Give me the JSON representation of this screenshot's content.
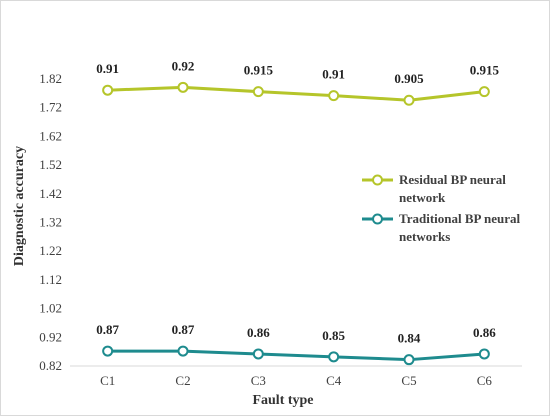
{
  "chart_data": {
    "type": "line",
    "title": "",
    "xlabel": "Fault type",
    "ylabel": "Diagnostic accuracy",
    "categories": [
      "C1",
      "C2",
      "C3",
      "C4",
      "C5",
      "C6"
    ],
    "yticks": [
      "0.82",
      "0.92",
      "1.02",
      "1.12",
      "1.22",
      "1.32",
      "1.42",
      "1.52",
      "1.62",
      "1.72",
      "1.82"
    ],
    "ylim": [
      0.82,
      1.82
    ],
    "grid": false,
    "legend_position": "right",
    "series": [
      {
        "name": "Residual BP neural network",
        "name_lines": [
          "Residual BP neural",
          "network"
        ],
        "color": "#b5c52a",
        "plotted": [
          1.781,
          1.791,
          1.776,
          1.762,
          1.746,
          1.776
        ],
        "labels": [
          "0.91",
          "0.92",
          "0.915",
          "0.91",
          "0.905",
          "0.915"
        ]
      },
      {
        "name": "Traditional BP neural networks",
        "name_lines": [
          "Traditional BP neural",
          "networks"
        ],
        "color": "#1e8b8e",
        "plotted": [
          0.872,
          0.872,
          0.862,
          0.852,
          0.842,
          0.862
        ],
        "labels": [
          "0.87",
          "0.87",
          "0.86",
          "0.85",
          "0.84",
          "0.86"
        ]
      }
    ]
  }
}
